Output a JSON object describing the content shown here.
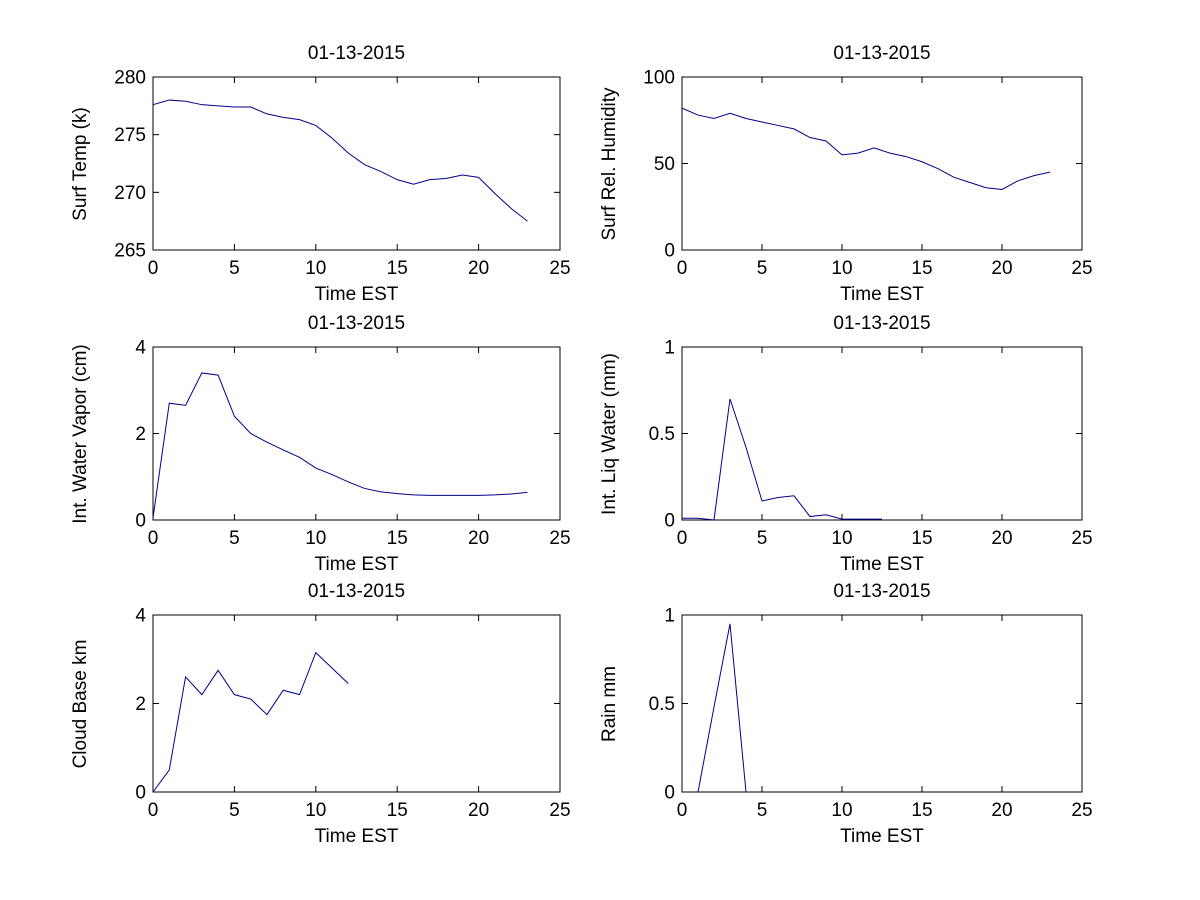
{
  "figure": {
    "background": "#ffffff",
    "line_color": "#00008b",
    "axis_color": "#000000",
    "text_color": "#000000"
  },
  "chart_data": [
    {
      "type": "line",
      "title": "01-13-2015",
      "xlabel": "Time EST",
      "ylabel": "Surf Temp (k)",
      "xlim": [
        0,
        25
      ],
      "ylim": [
        265,
        280
      ],
      "xticks": [
        0,
        5,
        10,
        15,
        20,
        25
      ],
      "yticks": [
        265,
        270,
        275,
        280
      ],
      "grid": false,
      "legend": null,
      "x": [
        0,
        1,
        2,
        3,
        4,
        5,
        6,
        7,
        8,
        9,
        10,
        11,
        12,
        13,
        14,
        15,
        16,
        17,
        18,
        19,
        20,
        21,
        22,
        23
      ],
      "y": [
        277.6,
        278.0,
        277.9,
        277.6,
        277.5,
        277.4,
        277.4,
        276.8,
        276.5,
        276.3,
        275.8,
        274.7,
        273.4,
        272.4,
        271.8,
        271.1,
        270.7,
        271.1,
        271.2,
        271.5,
        271.3,
        269.9,
        268.6,
        267.5
      ]
    },
    {
      "type": "line",
      "title": "01-13-2015",
      "xlabel": "Time EST",
      "ylabel": "Surf Rel. Humidity",
      "xlim": [
        0,
        25
      ],
      "ylim": [
        0,
        100
      ],
      "xticks": [
        0,
        5,
        10,
        15,
        20,
        25
      ],
      "yticks": [
        0,
        50,
        100
      ],
      "grid": false,
      "legend": null,
      "x": [
        0,
        1,
        2,
        3,
        4,
        5,
        6,
        7,
        8,
        9,
        10,
        11,
        12,
        13,
        14,
        15,
        16,
        17,
        18,
        19,
        20,
        21,
        22,
        23
      ],
      "y": [
        82,
        78,
        76,
        79,
        76,
        74,
        72,
        70,
        65,
        63,
        55,
        56,
        59,
        56,
        54,
        51,
        47,
        42,
        39,
        36,
        35,
        40,
        43,
        45
      ]
    },
    {
      "type": "line",
      "title": "01-13-2015",
      "xlabel": "Time EST",
      "ylabel": "Int. Water Vapor (cm)",
      "xlim": [
        0,
        25
      ],
      "ylim": [
        0,
        4
      ],
      "xticks": [
        0,
        5,
        10,
        15,
        20,
        25
      ],
      "yticks": [
        0,
        2,
        4
      ],
      "grid": false,
      "legend": null,
      "x": [
        0,
        1,
        2,
        3,
        4,
        5,
        6,
        7,
        8,
        9,
        10,
        11,
        12,
        13,
        14,
        15,
        16,
        17,
        18,
        19,
        20,
        21,
        22,
        23
      ],
      "y": [
        0.05,
        2.7,
        2.65,
        3.4,
        3.35,
        2.4,
        2.0,
        1.8,
        1.62,
        1.45,
        1.2,
        1.05,
        0.88,
        0.73,
        0.65,
        0.61,
        0.58,
        0.57,
        0.57,
        0.57,
        0.57,
        0.58,
        0.6,
        0.64
      ]
    },
    {
      "type": "line",
      "title": "01-13-2015",
      "xlabel": "Time EST",
      "ylabel": "Int. Liq Water (mm)",
      "xlim": [
        0,
        25
      ],
      "ylim": [
        0,
        1
      ],
      "xticks": [
        0,
        5,
        10,
        15,
        20,
        25
      ],
      "yticks": [
        0,
        0.5,
        1
      ],
      "grid": false,
      "legend": null,
      "x": [
        0,
        1,
        2,
        3,
        4,
        5,
        6,
        7,
        8,
        9,
        10,
        11,
        12,
        12.5
      ],
      "y": [
        0.01,
        0.01,
        0.0,
        0.7,
        0.42,
        0.11,
        0.13,
        0.14,
        0.02,
        0.03,
        0.005,
        0.005,
        0.005,
        0.005
      ]
    },
    {
      "type": "line",
      "title": "01-13-2015",
      "xlabel": "Time EST",
      "ylabel": "Cloud Base km",
      "xlim": [
        0,
        25
      ],
      "ylim": [
        0,
        4
      ],
      "xticks": [
        0,
        5,
        10,
        15,
        20,
        25
      ],
      "yticks": [
        0,
        2,
        4
      ],
      "grid": false,
      "legend": null,
      "x": [
        0,
        1,
        2,
        3,
        4,
        5,
        6,
        7,
        8,
        9,
        10,
        11,
        12
      ],
      "y": [
        0.0,
        0.5,
        2.6,
        2.2,
        2.75,
        2.2,
        2.1,
        1.75,
        2.3,
        2.2,
        3.15,
        2.8,
        2.45
      ]
    },
    {
      "type": "line",
      "title": "01-13-2015",
      "xlabel": "Time EST",
      "ylabel": "Rain mm",
      "xlim": [
        0,
        25
      ],
      "ylim": [
        0,
        1
      ],
      "xticks": [
        0,
        5,
        10,
        15,
        20,
        25
      ],
      "yticks": [
        0,
        0.5,
        1
      ],
      "grid": false,
      "legend": null,
      "x": [
        1,
        2,
        3,
        4
      ],
      "y": [
        0,
        0.48,
        0.95,
        0
      ]
    }
  ]
}
